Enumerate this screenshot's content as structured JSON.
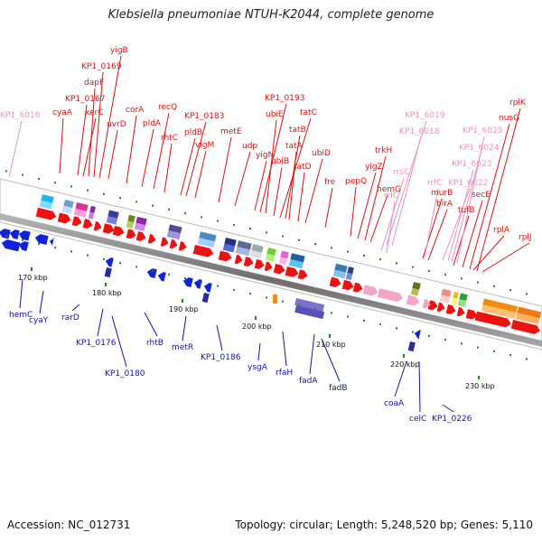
{
  "title": "Klebsiella pneumoniae NTUH-K2044, complete genome",
  "footer": {
    "accession": "Accession: NC_012731",
    "summary": "Topology: circular; Length: 5,248,520 bp; Genes: 5,110"
  },
  "colors": {
    "forward_gene": "#ee1111",
    "reverse_gene": "#1122dd",
    "rna_gene": "#f4a6c8",
    "forward_label": "#dd1111",
    "reverse_label": "#1111aa",
    "rna_label": "#f090c0",
    "backbone": "#8a8a8a",
    "tick": "#1a8a1a"
  },
  "scale": {
    "ticks": [
      "170 kbp",
      "180 kbp",
      "190 kbp",
      "200 kbp",
      "210 kbp",
      "220 kbp",
      "230 kbp"
    ]
  },
  "labels": {
    "forward": [
      "cyaA",
      "KP1_0167",
      "xerC",
      "dapF",
      "KP1_0169",
      "yigB",
      "uvrD",
      "corA",
      "pldA",
      "recQ",
      "rhtC",
      "pldB",
      "KP1_0183",
      "vigM",
      "metE",
      "udp",
      "yigN",
      "KP1_0193",
      "ubiE",
      "tatC",
      "tatB",
      "ubiB",
      "tatA",
      "tatD",
      "ubiD",
      "fre",
      "pepQ",
      "yigZ",
      "trkH",
      "hemG",
      "murB",
      "birA",
      "tufB",
      "secE",
      "nusG",
      "rplK",
      "rplA",
      "rplJ"
    ],
    "rna": [
      "KP1_6016",
      "KP1_6019",
      "KP1_6018",
      "rrsC",
      "rrlC",
      "rrfC",
      "KP1_6022",
      "KP1_6023",
      "KP1_6024",
      "KP1_6025"
    ],
    "reverse": [
      "hemC",
      "cyaY",
      "rarD",
      "KP1_0176",
      "KP1_0180",
      "rhtB",
      "metR",
      "KP1_0186",
      "ysgA",
      "rfaH",
      "fadA",
      "fadB",
      "coaA",
      "celC",
      "KP1_0226"
    ]
  }
}
